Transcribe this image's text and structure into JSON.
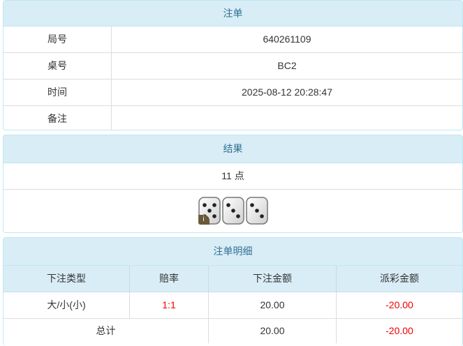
{
  "order": {
    "title": "注单",
    "rows": [
      {
        "label": "局号",
        "value": "640261109"
      },
      {
        "label": "桌号",
        "value": "BC2"
      },
      {
        "label": "时间",
        "value": "2025-08-12 20:28:47"
      },
      {
        "label": "备注",
        "value": ""
      }
    ]
  },
  "result": {
    "title": "结果",
    "points": "11 点",
    "dice": [
      5,
      3,
      3
    ],
    "badge": "i"
  },
  "detail": {
    "title": "注单明细",
    "headers": [
      "下注类型",
      "赔率",
      "下注金额",
      "派彩金额"
    ],
    "rows": [
      {
        "type": "大/小(小)",
        "odds": "1:1",
        "bet": "20.00",
        "payout": "-20.00"
      }
    ],
    "total": {
      "label": "总计",
      "bet": "20.00",
      "payout": "-20.00"
    }
  },
  "colors": {
    "header_bg": "#d9edf7",
    "header_text": "#31708f",
    "negative": "#e00000"
  }
}
